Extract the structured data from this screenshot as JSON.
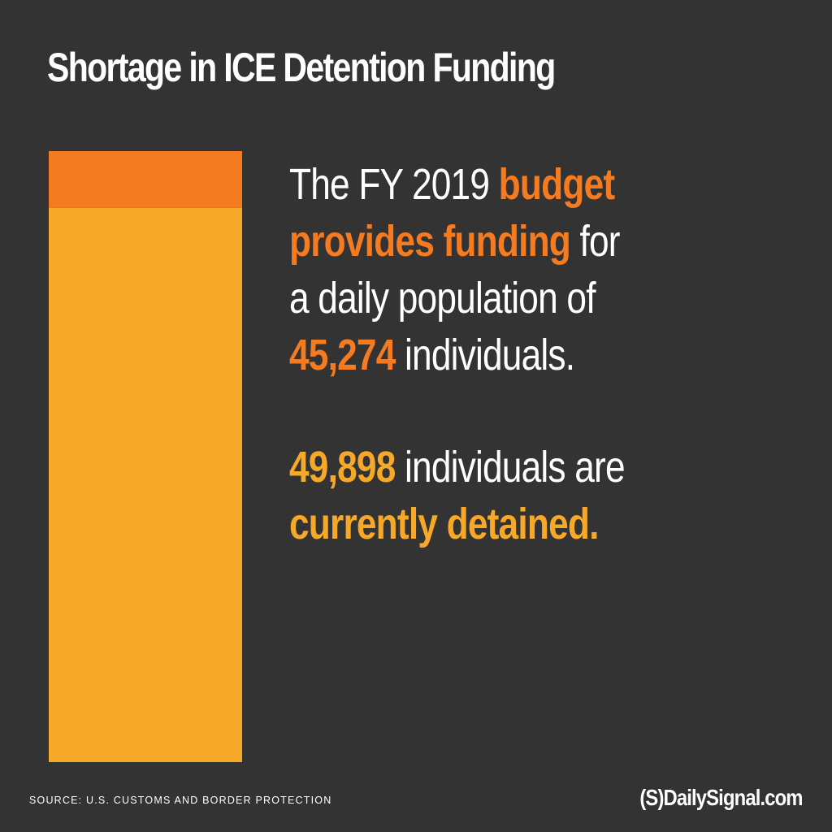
{
  "title": "Shortage in ICE Detention Funding",
  "chart_data": {
    "type": "bar",
    "orientation": "vertical-stacked",
    "segments": [
      {
        "value": 45274,
        "color": "#f6a929"
      },
      {
        "value": 4624,
        "color": "#f47b20"
      }
    ],
    "total": 49898
  },
  "text": {
    "p1": {
      "part1": "The FY 2019 ",
      "budget": "budget",
      "part2": "provides funding",
      "part3": " for",
      "line3": "a daily population of",
      "number": "45,274",
      "part4": " individuals."
    },
    "p2": {
      "number": "49,898",
      "part1": " individuals are",
      "part2": "currently detained."
    }
  },
  "colors": {
    "orange": "#f47b20",
    "yellow": "#f6a929",
    "background": "#333333"
  },
  "source": "SOURCE: U.S. CUSTOMS AND BORDER PROTECTION",
  "logo": {
    "mark": "(S)",
    "text": "DailySignal.com"
  }
}
